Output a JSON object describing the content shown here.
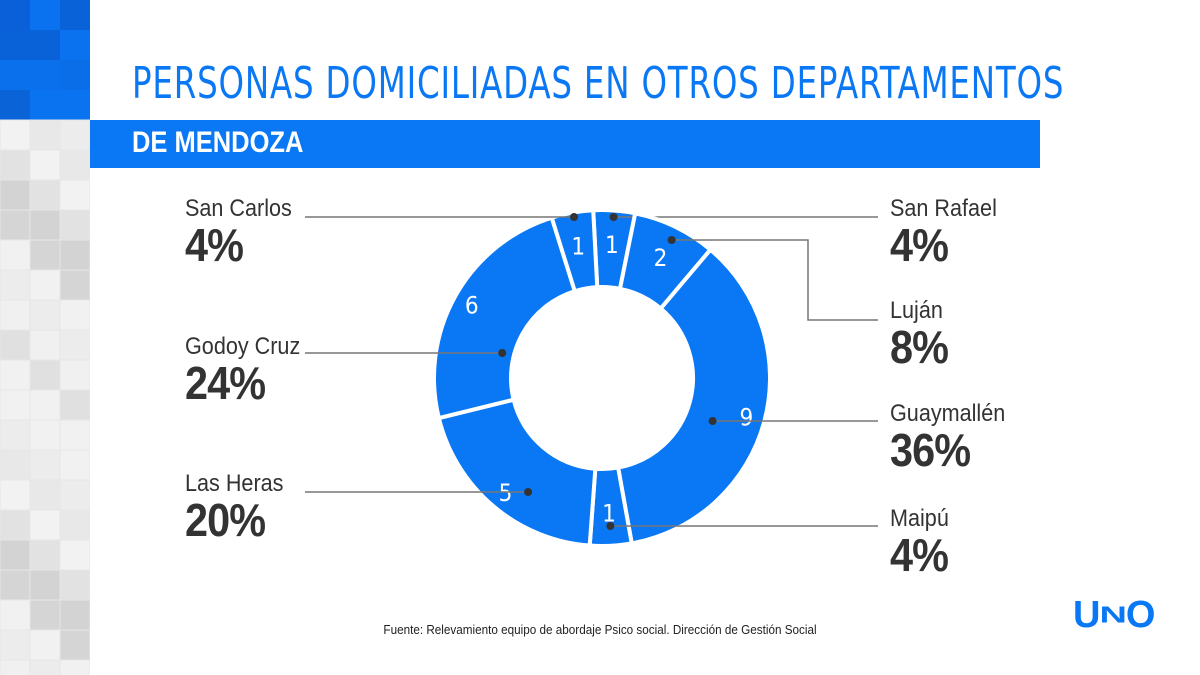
{
  "title": "PERSONAS DOMICILIADAS EN OTROS DEPARTAMENTOS",
  "subtitle": "DE MENDOZA",
  "source": "Fuente: Relevamiento equipo de abordaje Psico social. Dirección de Gestión Social",
  "logo": "UNO",
  "colors": {
    "accent": "#0a78f5",
    "text": "#333333"
  },
  "chart_data": {
    "type": "pie",
    "variant": "donut",
    "title": "PERSONAS DOMICILIADAS EN OTROS DEPARTAMENTOS DE MENDOZA",
    "categories": [
      "San Rafael",
      "Luján",
      "Guaymallén",
      "Maipú",
      "Las Heras",
      "Godoy Cruz",
      "San Carlos"
    ],
    "values": [
      1,
      2,
      9,
      1,
      5,
      6,
      1
    ],
    "percent_labels": [
      "4%",
      "8%",
      "36%",
      "4%",
      "20%",
      "24%",
      "4%"
    ]
  }
}
